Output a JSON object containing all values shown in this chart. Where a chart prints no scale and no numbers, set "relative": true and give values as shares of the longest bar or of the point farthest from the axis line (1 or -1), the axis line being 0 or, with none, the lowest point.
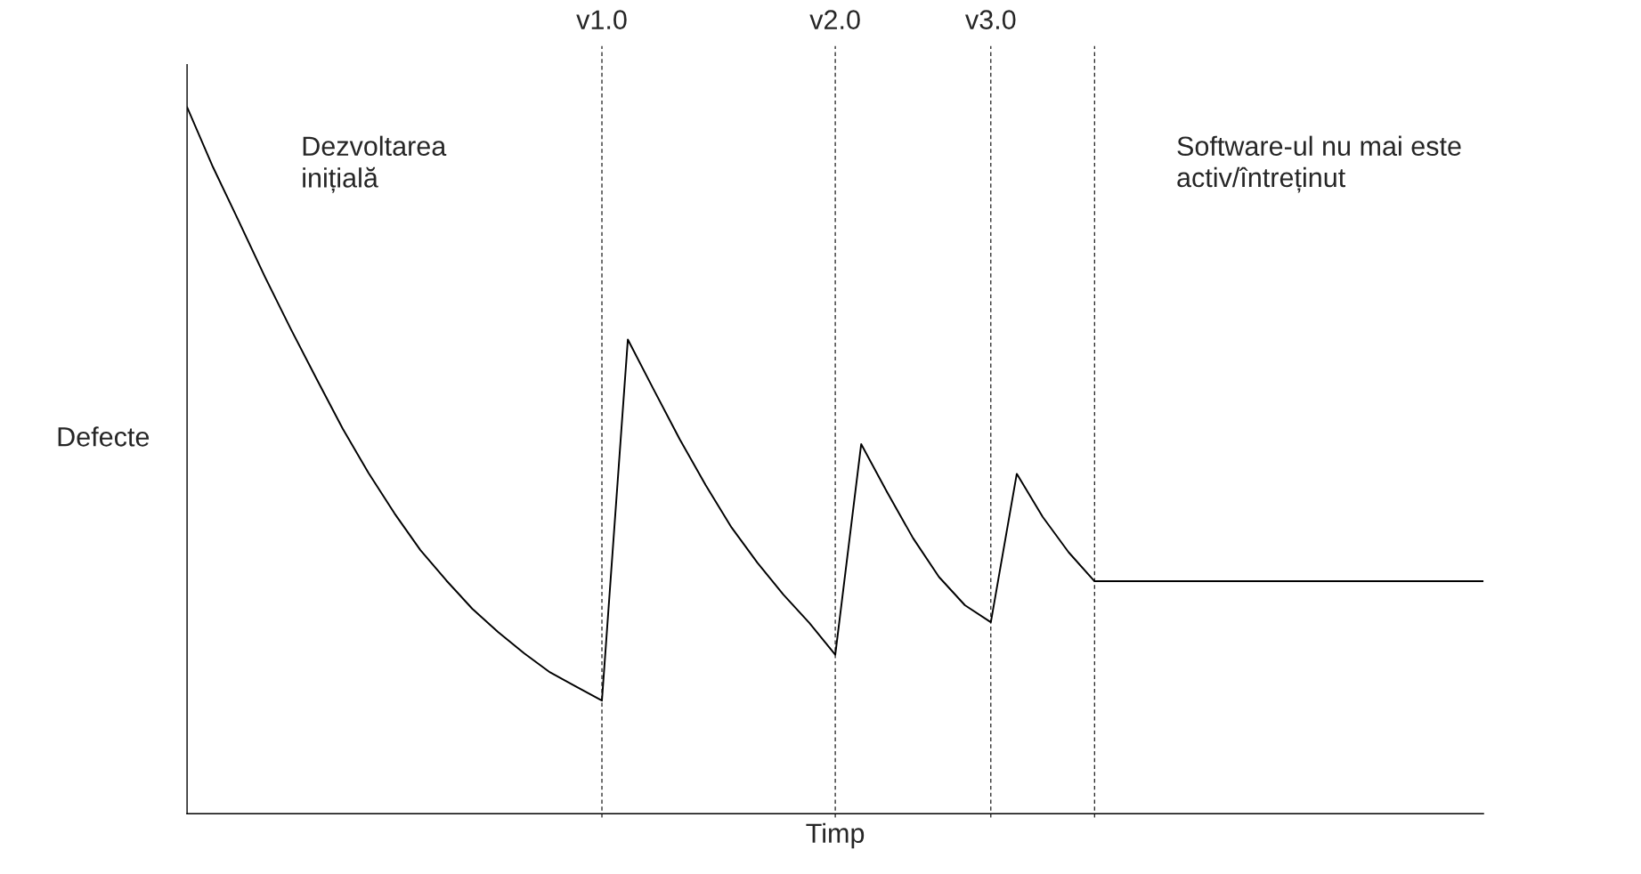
{
  "chart_data": {
    "type": "line",
    "relative": true,
    "xlabel": "Timp",
    "ylabel": "Defecte",
    "marker": "none",
    "line_style": "solid",
    "categories": [
      null,
      null,
      null,
      null,
      null,
      null,
      null,
      null,
      null,
      null,
      null,
      null,
      null,
      null,
      null,
      null,
      null,
      null,
      null,
      null,
      null,
      null,
      null,
      null,
      null,
      null,
      null,
      null,
      null,
      null,
      null,
      null,
      null,
      null,
      null,
      null,
      null,
      null,
      null,
      null,
      null,
      null,
      null,
      null,
      null,
      null,
      null,
      null,
      null,
      null,
      null
    ],
    "series": [
      {
        "color": "#000000",
        "values": [
          1.0,
          0.915,
          0.838,
          0.76,
          0.686,
          0.615,
          0.545,
          0.482,
          0.425,
          0.373,
          0.33,
          0.29,
          0.257,
          0.227,
          0.2,
          0.18,
          0.16,
          0.671,
          0.6,
          0.53,
          0.465,
          0.405,
          0.355,
          0.31,
          0.27,
          0.225,
          0.523,
          0.455,
          0.39,
          0.335,
          0.295,
          0.271,
          0.481,
          0.42,
          0.37,
          0.329,
          0.329,
          0.329,
          0.329,
          0.329,
          0.329,
          0.329,
          0.329,
          0.329,
          0.329,
          0.329,
          0.329,
          0.329,
          0.329,
          0.329,
          0.329
        ]
      }
    ],
    "grid": "x",
    "annotations": [
      "Dezvoltarea\ninițială",
      "Software-ul nu mai este\nactiv/întreținut",
      "v1.0",
      "v2.0",
      "v3.0"
    ]
  }
}
